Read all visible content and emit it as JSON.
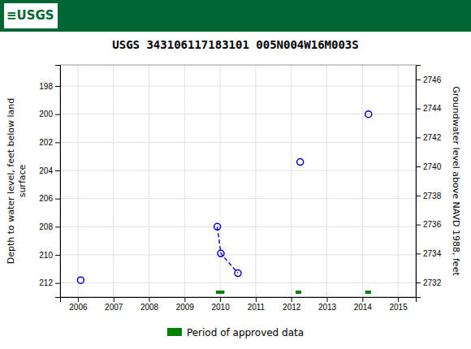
{
  "chart_data": {
    "type": "scatter",
    "title": "USGS 343106117183101 005N004W16M003S",
    "annotations": [
      "≡USGS"
    ],
    "ylabel": "Depth to water level, feet below land\nsurface",
    "y2label": "Groundwater level above NAVD 1988, feet",
    "xlim": [
      2005.5,
      2015.5
    ],
    "xticks": [
      2006,
      2007,
      2008,
      2009,
      2010,
      2011,
      2012,
      2013,
      2014,
      2015
    ],
    "ylim": [
      213.0,
      196.5
    ],
    "yticks": [
      198,
      200,
      202,
      204,
      206,
      208,
      210,
      212
    ],
    "y2lim": [
      2731,
      2747
    ],
    "y2ticks": [
      2746,
      2744,
      2742,
      2740,
      2738,
      2736,
      2734,
      2732
    ],
    "grid": true,
    "legend": "bottom",
    "series": [
      {
        "type": "line",
        "line_style": "dashed",
        "color": "#0000cc",
        "x": [
          2009.92,
          2010.02,
          2010.5
        ],
        "values": [
          208.0,
          209.9,
          211.3
        ]
      },
      {
        "type": "scatter",
        "marker": "open-circle",
        "color": "#0000cc",
        "x": [
          2006.08,
          2009.92,
          2010.02,
          2010.5,
          2012.25,
          2014.17
        ],
        "values": [
          211.8,
          208.0,
          209.9,
          211.3,
          203.4,
          200.0
        ]
      },
      {
        "type": "span",
        "name": "Period of approved data",
        "color": "#008000",
        "x": [
          2009.88,
          2012.12,
          2014.08
        ],
        "x_end": [
          2010.12,
          2012.28,
          2014.24
        ]
      }
    ]
  }
}
